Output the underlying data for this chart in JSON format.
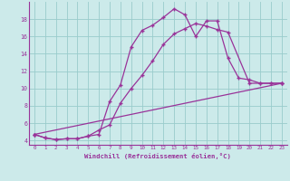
{
  "bg_color": "#cceaea",
  "line_color": "#993399",
  "grid_color": "#99cccc",
  "xlabel": "Windchill (Refroidissement éolien,°C)",
  "xlim": [
    -0.5,
    23.5
  ],
  "ylim": [
    3.5,
    20.0
  ],
  "xticks": [
    0,
    1,
    2,
    3,
    4,
    5,
    6,
    7,
    8,
    9,
    10,
    11,
    12,
    13,
    14,
    15,
    16,
    17,
    18,
    19,
    20,
    21,
    22,
    23
  ],
  "yticks": [
    4,
    6,
    8,
    10,
    12,
    14,
    16,
    18
  ],
  "line1_x": [
    0,
    1,
    2,
    3,
    4,
    5,
    6,
    7,
    8,
    9,
    10,
    11,
    12,
    13,
    14,
    15,
    16,
    17,
    18,
    19,
    20,
    21,
    22,
    23
  ],
  "line1_y": [
    4.7,
    4.3,
    4.1,
    4.2,
    4.2,
    4.5,
    4.7,
    8.5,
    10.4,
    14.8,
    16.7,
    17.3,
    18.2,
    19.2,
    18.5,
    16.0,
    17.8,
    17.8,
    13.5,
    11.2,
    11.0,
    10.6,
    10.6,
    10.6
  ],
  "line2_x": [
    0,
    1,
    2,
    3,
    4,
    5,
    6,
    7,
    8,
    9,
    10,
    11,
    12,
    13,
    14,
    15,
    16,
    17,
    18,
    20,
    21,
    22,
    23
  ],
  "line2_y": [
    4.7,
    4.3,
    4.1,
    4.2,
    4.2,
    4.5,
    5.2,
    5.8,
    8.3,
    10.0,
    11.5,
    13.2,
    15.1,
    16.3,
    16.9,
    17.5,
    17.2,
    16.8,
    16.5,
    10.6,
    10.6,
    10.6,
    10.6
  ],
  "line3_x": [
    0,
    23
  ],
  "line3_y": [
    4.7,
    10.6
  ]
}
